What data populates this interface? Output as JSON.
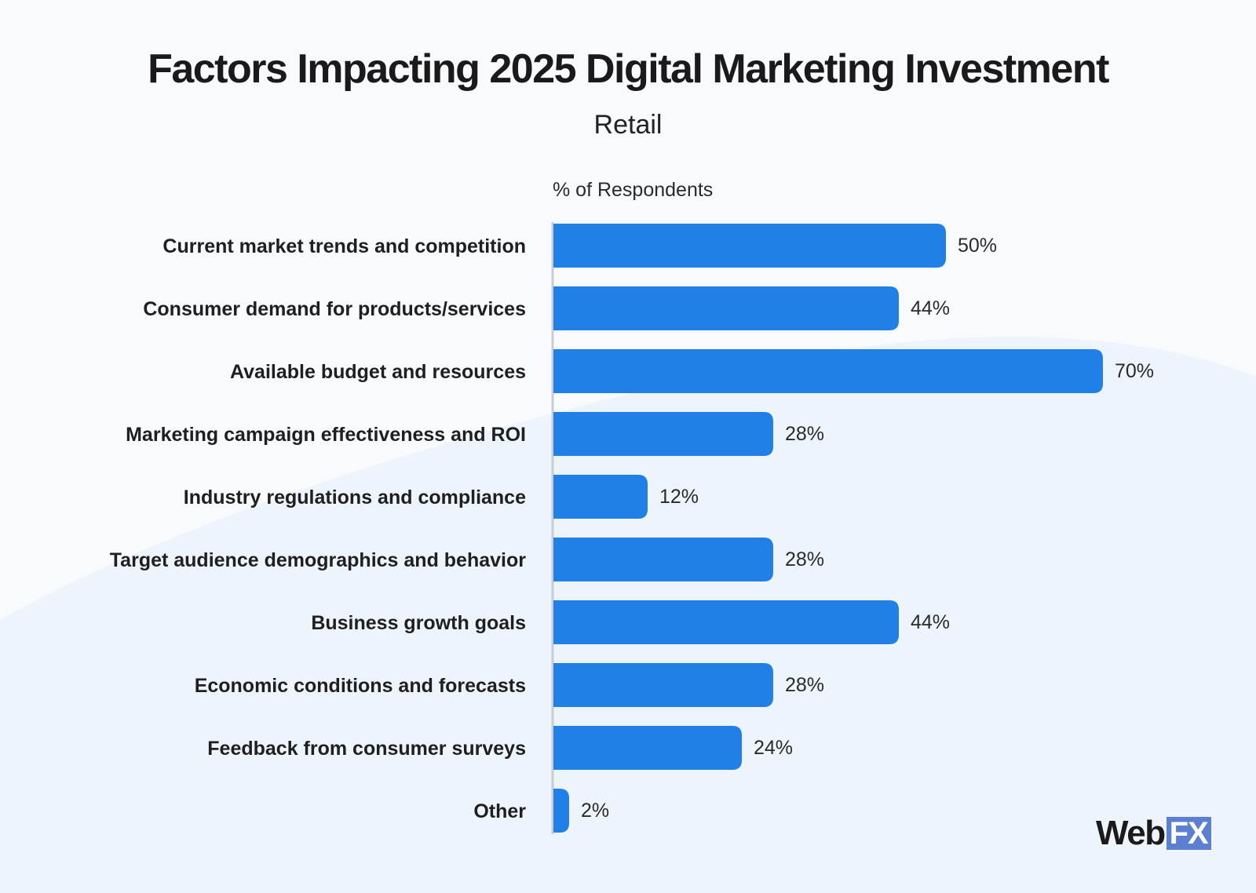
{
  "chart_data": {
    "type": "bar",
    "orientation": "horizontal",
    "title": "Factors Impacting 2025 Digital Marketing Investment",
    "subtitle": "Retail",
    "xlabel": "% of Respondents",
    "xlim": [
      0,
      70
    ],
    "grid": false,
    "categories": [
      "Current market trends and competition",
      "Consumer demand for products/services",
      "Available budget and resources",
      "Marketing campaign effectiveness and ROI",
      "Industry regulations and compliance",
      "Target audience demographics and behavior",
      "Business growth goals",
      "Economic conditions and forecasts",
      "Feedback from consumer surveys",
      "Other"
    ],
    "values": [
      50,
      44,
      70,
      28,
      12,
      28,
      44,
      28,
      24,
      2
    ],
    "value_labels": [
      "50%",
      "44%",
      "70%",
      "28%",
      "12%",
      "28%",
      "44%",
      "28%",
      "24%",
      "2%"
    ],
    "colors": {
      "bar": "#217fe8",
      "axis": "#c9ccd1"
    }
  },
  "branding": {
    "logo_web": "Web",
    "logo_fx": "FX"
  }
}
